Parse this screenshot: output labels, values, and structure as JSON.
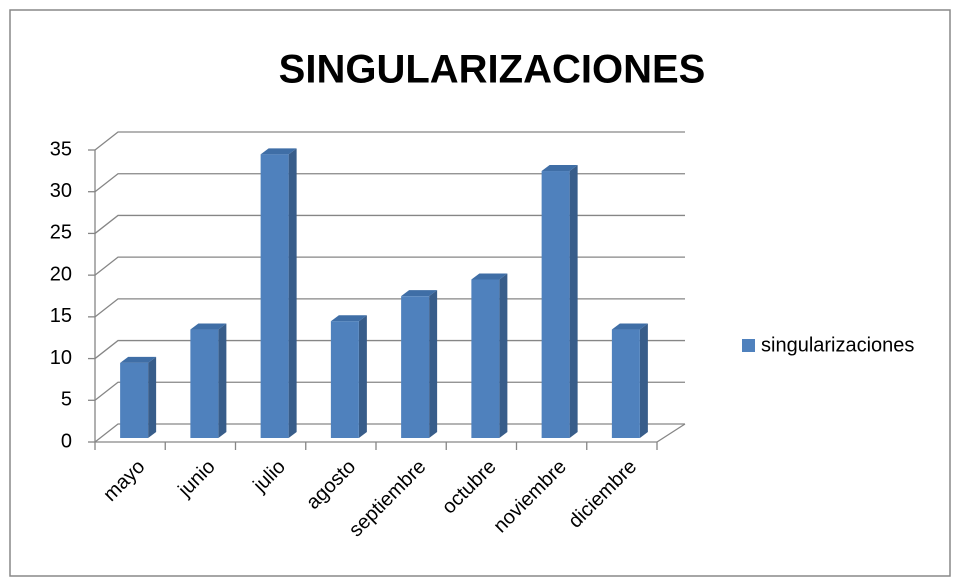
{
  "chart_data": {
    "type": "bar",
    "title": "SINGULARIZACIONES",
    "categories": [
      "mayo",
      "junio",
      "julio",
      "agosto",
      "septiembre",
      "octubre",
      "noviembre",
      "diciembre"
    ],
    "series": [
      {
        "name": "singularizaciones",
        "color": "#4f81bd",
        "values": [
          9,
          13,
          34,
          14,
          17,
          19,
          32,
          13
        ]
      }
    ],
    "ylim": [
      0,
      35
    ],
    "yticks": [
      0,
      5,
      10,
      15,
      20,
      25,
      30,
      35
    ],
    "grid": true,
    "legend": "right"
  }
}
